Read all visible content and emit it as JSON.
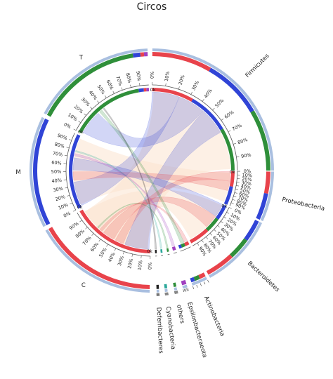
{
  "chart_data": {
    "type": "circos",
    "title": "Circos",
    "segments": [
      {
        "name": "Firmicutes",
        "start": 0.3,
        "end": 90.0,
        "outer": [
          {
            "color": "#e8434b",
            "value": 0.33
          },
          {
            "color": "#3044d6",
            "value": 0.33
          },
          {
            "color": "#2f8f3a",
            "value": 0.34
          }
        ]
      },
      {
        "name": "Proteobacteria",
        "start": 90.5,
        "end": 114.5,
        "outer": [
          {
            "color": "#e8434b",
            "value": 0.45
          },
          {
            "color": "#3044d6",
            "value": 0.55
          }
        ]
      },
      {
        "name": "Bacteroidetes",
        "start": 115.5,
        "end": 151.5,
        "outer": [
          {
            "color": "#3044d6",
            "value": 0.3
          },
          {
            "color": "#2f8f3a",
            "value": 0.3
          },
          {
            "color": "#e8434b",
            "value": 0.4
          }
        ]
      },
      {
        "name": "Actinobacteria",
        "start": 153.0,
        "end": 160.5,
        "outer": [
          {
            "color": "#e8434b",
            "value": 0.4
          },
          {
            "color": "#2f8f3a",
            "value": 0.35
          },
          {
            "color": "#3044d6",
            "value": 0.25
          }
        ]
      },
      {
        "name": "Epsilonbacteraeota",
        "start": 163.0,
        "end": 165.2,
        "outer": [
          {
            "color": "#a040c0",
            "value": 1.0
          }
        ]
      },
      {
        "name": "others",
        "start": 168.0,
        "end": 169.3,
        "outer": [
          {
            "color": "#2f8f3a",
            "value": 1.0
          }
        ]
      },
      {
        "name": "Cyanobacteria",
        "start": 172.5,
        "end": 173.8,
        "outer": [
          {
            "color": "#2ba89a",
            "value": 1.0
          }
        ]
      },
      {
        "name": "Deferribacteres",
        "start": 176.5,
        "end": 177.7,
        "outer": [
          {
            "color": "#222222",
            "value": 1.0
          }
        ]
      },
      {
        "name": "C",
        "start": 181.0,
        "end": 240.5,
        "outer": [
          {
            "color": "#e8434b",
            "value": 1.0
          }
        ]
      },
      {
        "name": "M",
        "start": 242.5,
        "end": 296.0,
        "outer": [
          {
            "color": "#3044d6",
            "value": 1.0
          }
        ]
      },
      {
        "name": "T",
        "start": 298.0,
        "end": 358.0,
        "outer": [
          {
            "color": "#2f8f3a",
            "value": 0.88
          },
          {
            "color": "#3044d6",
            "value": 0.06
          },
          {
            "color": "#e8434b",
            "value": 0.03
          },
          {
            "color": "#a040c0",
            "value": 0.03
          }
        ]
      }
    ],
    "tick_labels": [
      "0%",
      "10%",
      "20%",
      "30%",
      "40%",
      "50%",
      "60%",
      "70%",
      "80%",
      "90%"
    ],
    "zero_label": "0k",
    "links": [
      {
        "from": "Firmicutes",
        "to": "M",
        "color": "#3044d6"
      },
      {
        "from": "Firmicutes",
        "to": "T",
        "color": "#3044d6"
      },
      {
        "from": "Firmicutes",
        "to": "C",
        "color": "#3044d6"
      },
      {
        "from": "Proteobacteria",
        "to": "C",
        "color": "#e8434b"
      },
      {
        "from": "Proteobacteria",
        "to": "M",
        "color": "#e8434b"
      },
      {
        "from": "Bacteroidetes",
        "to": "M",
        "color": "#3044d6"
      },
      {
        "from": "Bacteroidetes",
        "to": "C",
        "color": "#e8434b"
      },
      {
        "from": "Actinobacteria",
        "to": "C",
        "color": "#e8434b"
      },
      {
        "from": "Actinobacteria",
        "to": "T",
        "color": "#2f8f3a"
      },
      {
        "from": "Epsilonbacteraeota",
        "to": "M",
        "color": "#a040c0"
      },
      {
        "from": "others",
        "to": "C",
        "color": "#2f8f3a"
      },
      {
        "from": "Cyanobacteria",
        "to": "M",
        "color": "#2ba89a"
      },
      {
        "from": "Deferribacteres",
        "to": "T",
        "color": "#222222"
      }
    ],
    "colors": {
      "track": "#a9bfe0",
      "link_bg": "#fbe3cf"
    }
  }
}
